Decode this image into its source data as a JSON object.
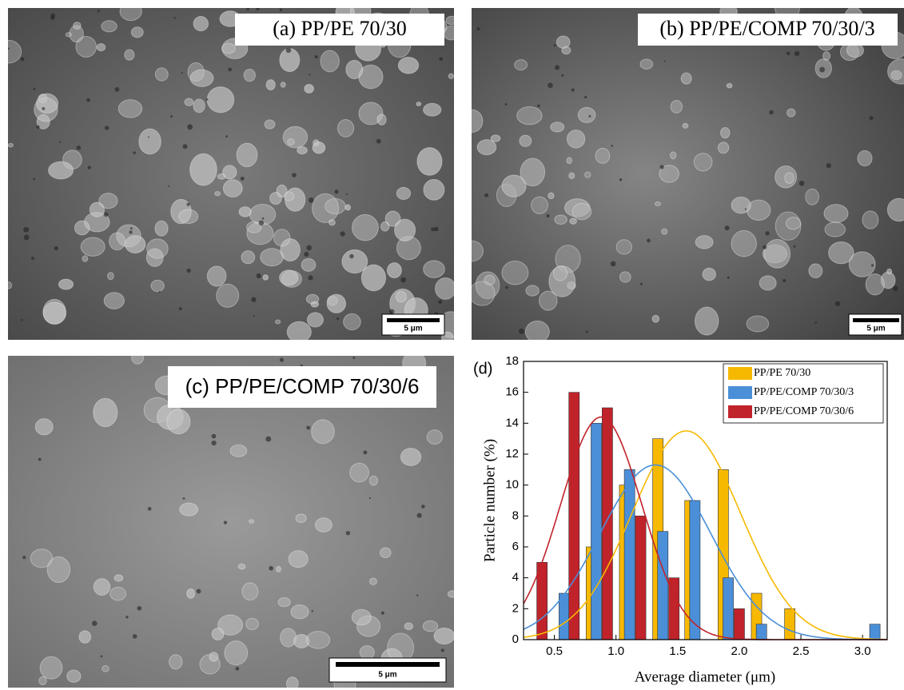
{
  "panels": [
    {
      "label": "(a) PP/PE 70/30",
      "scale_bar": "5 μm"
    },
    {
      "label": "(b) PP/PE/COMP 70/30/3",
      "scale_bar": "5 μm"
    },
    {
      "label": "(c) PP/PE/COMP 70/30/6",
      "scale_bar": "5 μm"
    }
  ],
  "chart_data": {
    "type": "bar",
    "panel_label": "(d)",
    "xlabel": "Average diameter (μm)",
    "ylabel": "Particle number (%)",
    "xlim": [
      0.25,
      3.2
    ],
    "ylim": [
      0,
      18
    ],
    "xticks": [
      0.5,
      {
        "value": 1,
        "label": "1.0"
      },
      1.5,
      {
        "value": 2,
        "label": "2.0"
      },
      2.5,
      {
        "value": 3,
        "label": "3.0"
      }
    ],
    "yticks": [
      0,
      2,
      4,
      6,
      8,
      10,
      12,
      14,
      16,
      18
    ],
    "legend": "upper right",
    "series": [
      {
        "name": "PP/PE 70/30",
        "color": "#f7b900",
        "x": [
          0.8,
          1.07,
          1.34,
          1.6,
          1.87,
          2.14,
          2.41
        ],
        "values": [
          6,
          10,
          13,
          9,
          11,
          3,
          2
        ],
        "fit": {
          "center": 1.57,
          "peak": 13.5,
          "sigma": 0.44
        }
      },
      {
        "name": "PP/PE/COMP 70/30/3",
        "color": "#4a8fd8",
        "x": [
          0.58,
          0.84,
          1.11,
          1.38,
          1.64,
          1.91,
          2.18,
          3.1
        ],
        "values": [
          3,
          14,
          11,
          7,
          9,
          4,
          1,
          1
        ],
        "fit": {
          "center": 1.32,
          "peak": 11.3,
          "sigma": 0.45
        }
      },
      {
        "name": "PP/PE/COMP 70/30/6",
        "color": "#c1232b",
        "x": [
          0.4,
          0.66,
          0.93,
          1.2,
          1.47,
          2.0
        ],
        "values": [
          5,
          16,
          15,
          8,
          4,
          2
        ],
        "fit": {
          "center": 0.88,
          "peak": 14.4,
          "sigma": 0.33
        }
      }
    ]
  }
}
